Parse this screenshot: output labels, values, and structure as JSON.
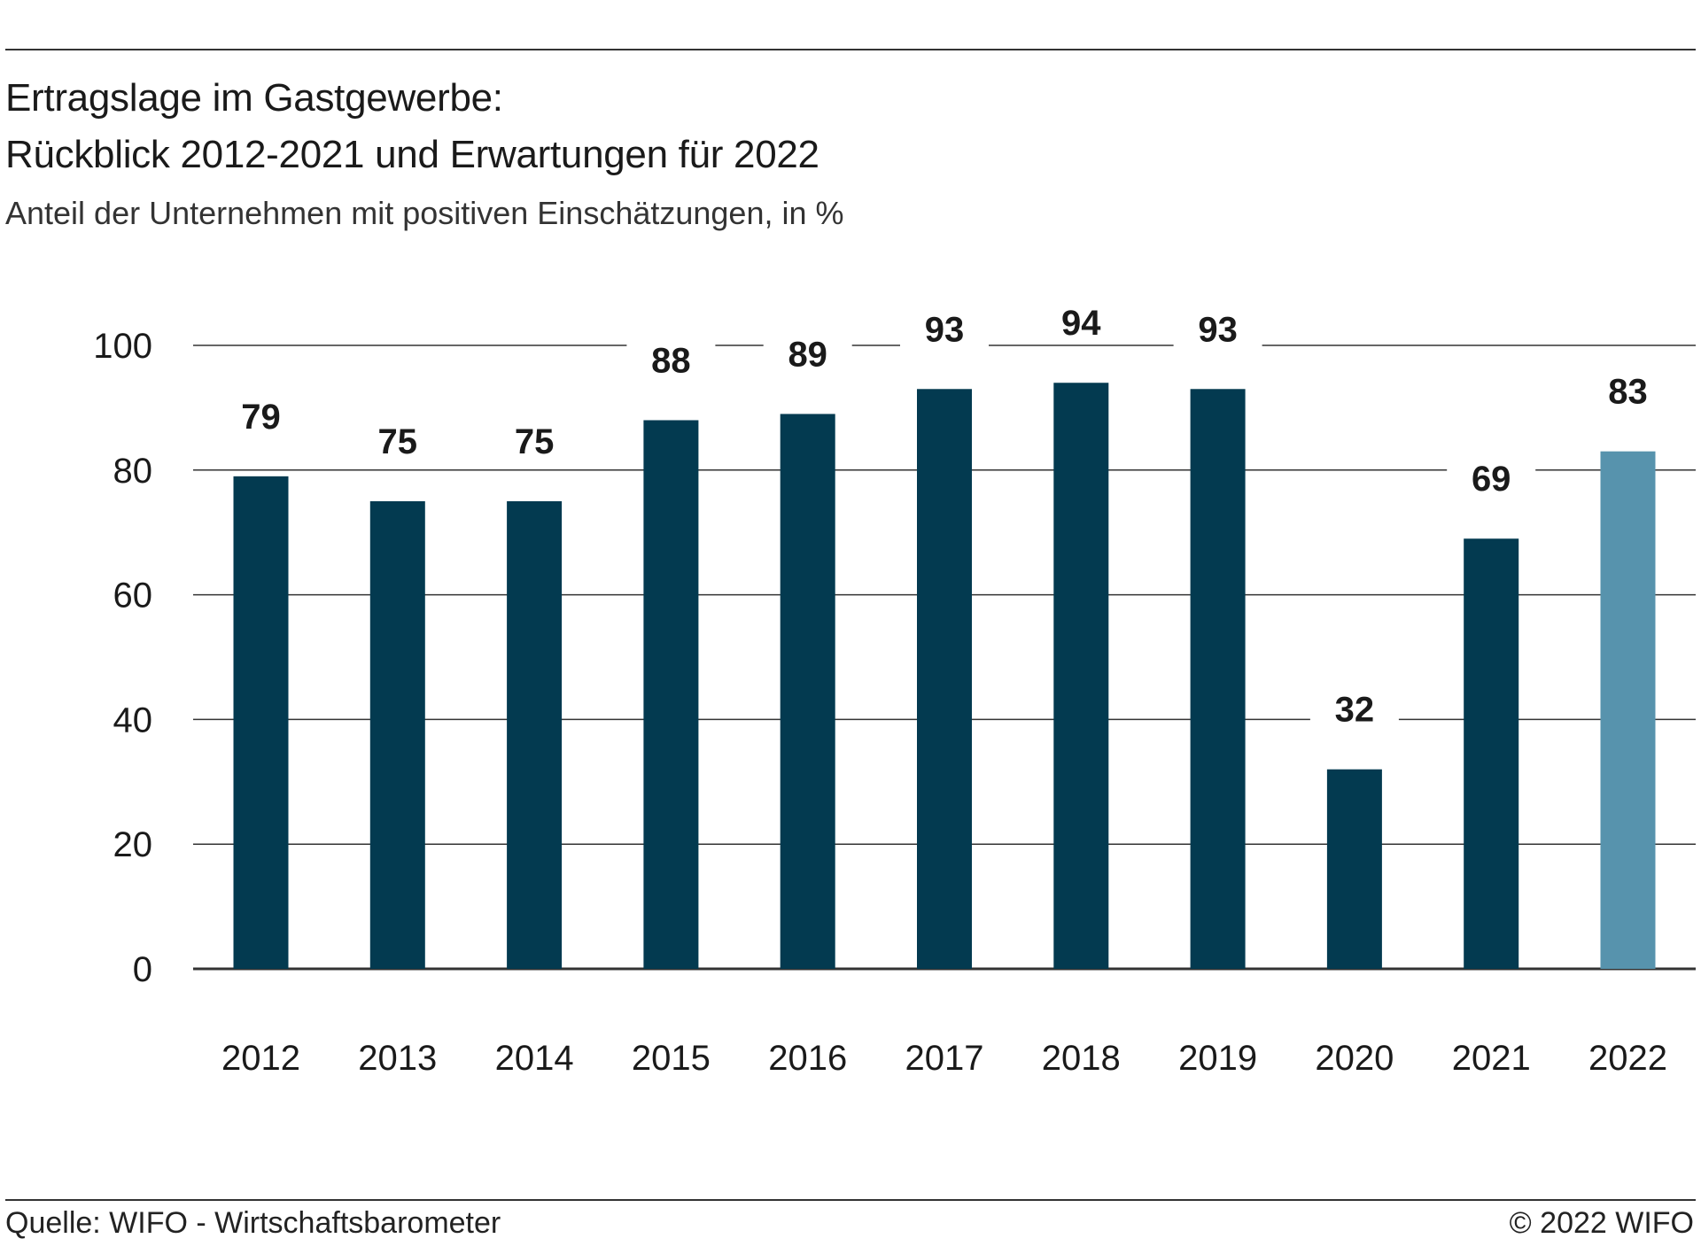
{
  "header": {
    "title_line1": "Ertragslage im Gastgewerbe:",
    "title_line2": "Rückblick 2012-2021 und Erwartungen für 2022",
    "subtitle": "Anteil der Unternehmen mit positiven Einschätzungen, in %"
  },
  "footer": {
    "source": "Quelle: WIFO - Wirtschaftsbarometer",
    "copyright": "© 2022 WIFO"
  },
  "chart_data": {
    "type": "bar",
    "title": "",
    "xlabel": "",
    "ylabel": "",
    "categories": [
      "2012",
      "2013",
      "2014",
      "2015",
      "2016",
      "2017",
      "2018",
      "2019",
      "2020",
      "2021",
      "2022"
    ],
    "values": [
      79,
      75,
      75,
      88,
      89,
      93,
      94,
      93,
      32,
      69,
      83
    ],
    "ylim": [
      0,
      100
    ],
    "yticks": [
      0,
      20,
      40,
      60,
      80,
      100
    ],
    "grid": true,
    "data_labels": true,
    "colors": {
      "actual": "#033a50",
      "expectation": "#5793ad",
      "grid": "#333333"
    },
    "highlight_index": 10
  }
}
